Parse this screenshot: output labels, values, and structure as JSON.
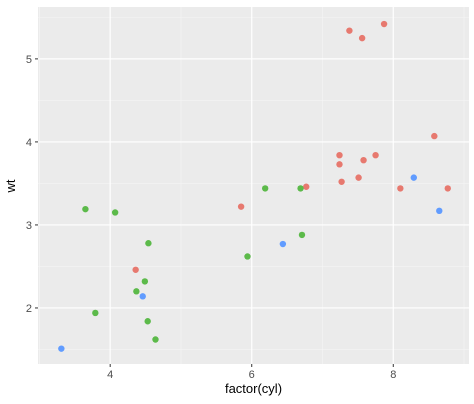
{
  "chart_data": {
    "type": "scatter",
    "title": "",
    "xlabel": "factor(cyl)",
    "ylabel": "wt",
    "xlim": [
      2.98,
      9.07
    ],
    "ylim": [
      1.325,
      5.625
    ],
    "x_ticks": [
      4,
      6,
      8
    ],
    "y_ticks": [
      2,
      3,
      4,
      5
    ],
    "grid": true,
    "legend": "none",
    "colors": {
      "panel_background": "#ebebeb",
      "grid_major": "#ffffff",
      "grid_minor": "#f5f5f5",
      "red": "#e7796f",
      "green": "#5cba4a",
      "blue": "#619cff"
    },
    "points": [
      {
        "x": 7.38,
        "y": 5.34,
        "color": "red"
      },
      {
        "x": 7.56,
        "y": 5.25,
        "color": "red"
      },
      {
        "x": 7.87,
        "y": 5.42,
        "color": "red"
      },
      {
        "x": 8.58,
        "y": 4.07,
        "color": "red"
      },
      {
        "x": 7.24,
        "y": 3.84,
        "color": "red"
      },
      {
        "x": 7.75,
        "y": 3.84,
        "color": "red"
      },
      {
        "x": 7.58,
        "y": 3.78,
        "color": "red"
      },
      {
        "x": 7.24,
        "y": 3.73,
        "color": "red"
      },
      {
        "x": 7.51,
        "y": 3.57,
        "color": "red"
      },
      {
        "x": 7.27,
        "y": 3.52,
        "color": "red"
      },
      {
        "x": 6.77,
        "y": 3.46,
        "color": "red"
      },
      {
        "x": 8.1,
        "y": 3.44,
        "color": "red"
      },
      {
        "x": 8.77,
        "y": 3.44,
        "color": "red"
      },
      {
        "x": 5.85,
        "y": 3.22,
        "color": "red"
      },
      {
        "x": 4.36,
        "y": 2.46,
        "color": "red"
      },
      {
        "x": 6.19,
        "y": 3.44,
        "color": "green"
      },
      {
        "x": 6.69,
        "y": 3.44,
        "color": "green"
      },
      {
        "x": 3.65,
        "y": 3.19,
        "color": "green"
      },
      {
        "x": 4.07,
        "y": 3.15,
        "color": "green"
      },
      {
        "x": 6.71,
        "y": 2.88,
        "color": "green"
      },
      {
        "x": 4.54,
        "y": 2.78,
        "color": "green"
      },
      {
        "x": 5.94,
        "y": 2.62,
        "color": "green"
      },
      {
        "x": 4.49,
        "y": 2.32,
        "color": "green"
      },
      {
        "x": 4.37,
        "y": 2.2,
        "color": "green"
      },
      {
        "x": 3.79,
        "y": 1.94,
        "color": "green"
      },
      {
        "x": 4.53,
        "y": 1.84,
        "color": "green"
      },
      {
        "x": 4.64,
        "y": 1.62,
        "color": "green"
      },
      {
        "x": 8.29,
        "y": 3.57,
        "color": "blue"
      },
      {
        "x": 8.65,
        "y": 3.17,
        "color": "blue"
      },
      {
        "x": 6.44,
        "y": 2.77,
        "color": "blue"
      },
      {
        "x": 4.46,
        "y": 2.14,
        "color": "blue"
      },
      {
        "x": 3.31,
        "y": 1.51,
        "color": "blue"
      }
    ]
  }
}
